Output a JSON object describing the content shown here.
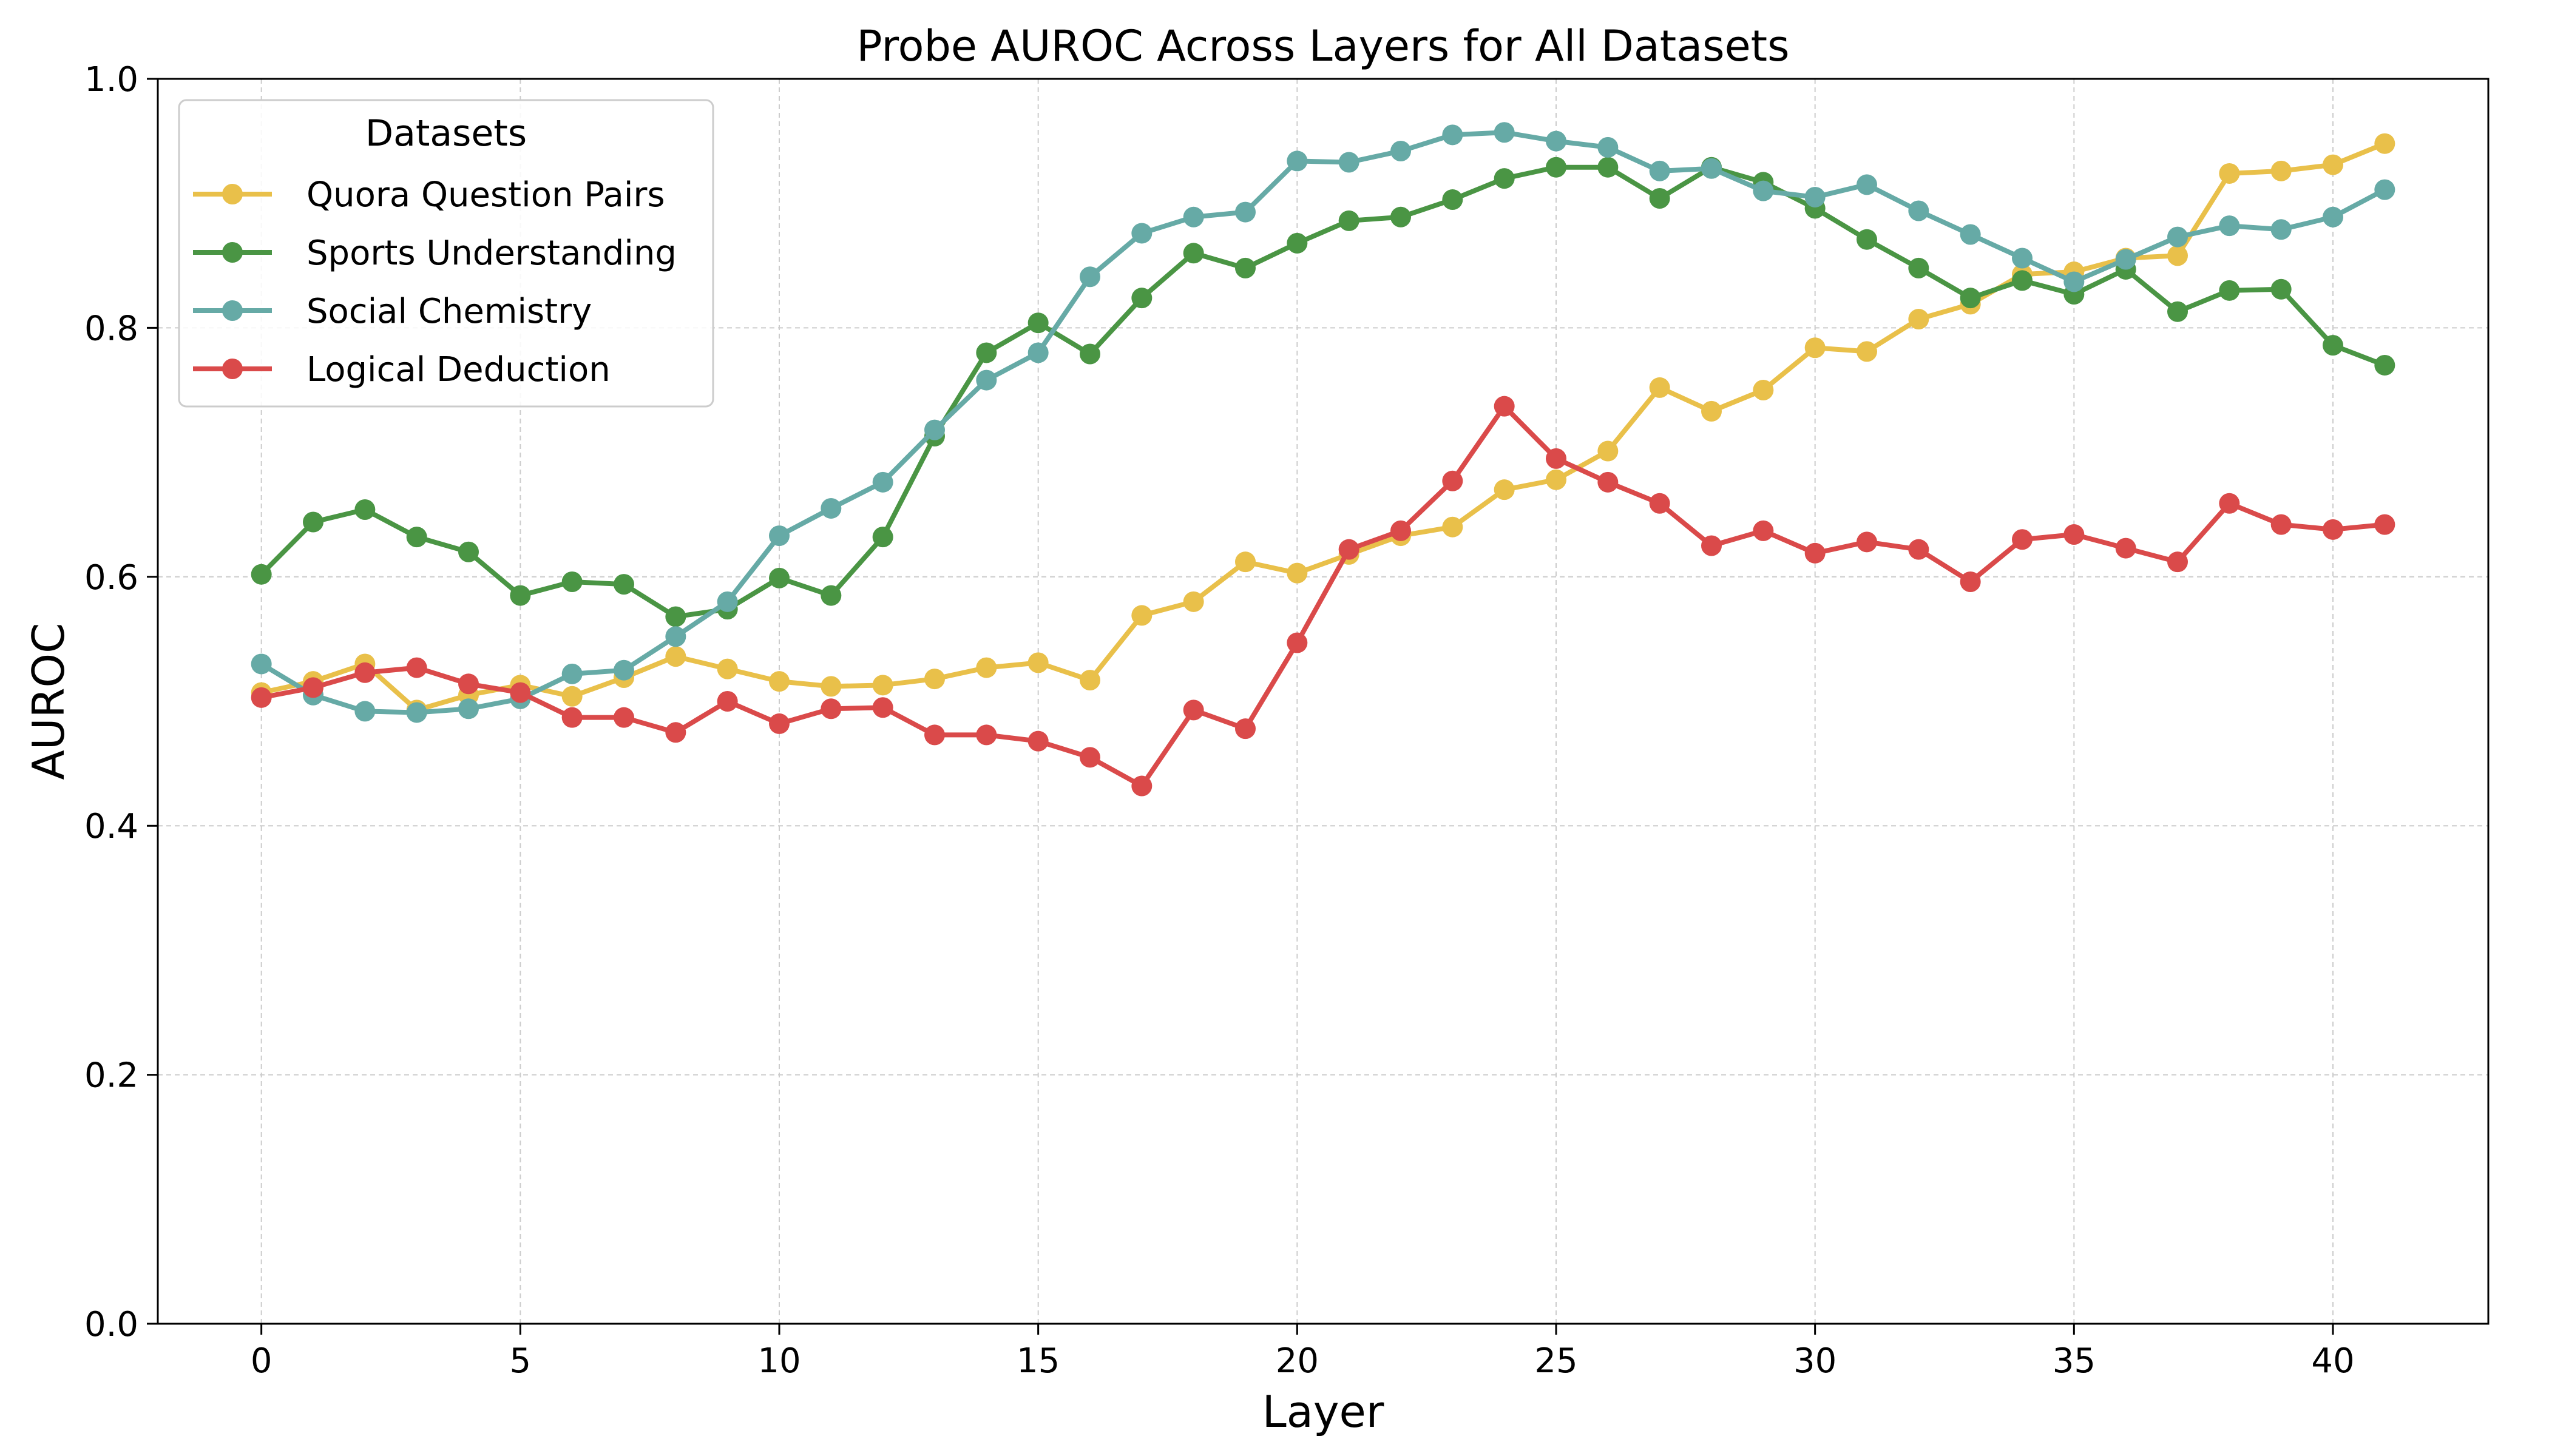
{
  "chart_data": {
    "type": "line",
    "title": "Probe AUROC Across Layers for All Datasets",
    "xlabel": "Layer",
    "ylabel": "AUROC",
    "xlim": [
      -2,
      43
    ],
    "ylim": [
      0.0,
      1.0
    ],
    "xticks": [
      0,
      5,
      10,
      15,
      20,
      25,
      30,
      35,
      40
    ],
    "yticks": [
      "0.0",
      "0.2",
      "0.4",
      "0.6",
      "0.8",
      "1.0"
    ],
    "grid": true,
    "legend": {
      "title": "Datasets",
      "placement": "top-left"
    },
    "x": [
      0,
      1,
      2,
      3,
      4,
      5,
      6,
      7,
      8,
      9,
      10,
      11,
      12,
      13,
      14,
      15,
      16,
      17,
      18,
      19,
      20,
      21,
      22,
      23,
      24,
      25,
      26,
      27,
      28,
      29,
      30,
      31,
      32,
      33,
      34,
      35,
      36,
      37,
      38,
      39,
      40,
      41
    ],
    "series": [
      {
        "name": "Quora Question Pairs",
        "color": "#E9C04A",
        "values": [
          0.507,
          0.516,
          0.53,
          0.493,
          0.505,
          0.513,
          0.504,
          0.519,
          0.536,
          0.526,
          0.516,
          0.512,
          0.513,
          0.518,
          0.527,
          0.531,
          0.517,
          0.569,
          0.58,
          0.612,
          0.603,
          0.618,
          0.633,
          0.64,
          0.67,
          0.678,
          0.701,
          0.752,
          0.733,
          0.75,
          0.784,
          0.781,
          0.807,
          0.819,
          0.843,
          0.845,
          0.856,
          0.858,
          0.924,
          0.926,
          0.931,
          0.948
        ]
      },
      {
        "name": "Sports Understanding",
        "color": "#4A9544",
        "values": [
          0.602,
          0.644,
          0.654,
          0.632,
          0.62,
          0.585,
          0.596,
          0.594,
          0.568,
          0.574,
          0.599,
          0.585,
          0.632,
          0.713,
          0.78,
          0.804,
          0.779,
          0.824,
          0.86,
          0.848,
          0.868,
          0.886,
          0.889,
          0.903,
          0.92,
          0.929,
          0.929,
          0.904,
          0.929,
          0.917,
          0.896,
          0.871,
          0.848,
          0.824,
          0.838,
          0.827,
          0.847,
          0.813,
          0.83,
          0.831,
          0.786,
          0.77
        ]
      },
      {
        "name": "Social Chemistry",
        "color": "#66AAA6",
        "values": [
          0.53,
          0.505,
          0.492,
          0.491,
          0.494,
          0.502,
          0.522,
          0.525,
          0.552,
          0.58,
          0.633,
          0.655,
          0.676,
          0.718,
          0.758,
          0.78,
          0.841,
          0.876,
          0.889,
          0.893,
          0.934,
          0.933,
          0.942,
          0.955,
          0.957,
          0.95,
          0.945,
          0.926,
          0.928,
          0.91,
          0.905,
          0.915,
          0.894,
          0.875,
          0.856,
          0.837,
          0.855,
          0.873,
          0.882,
          0.879,
          0.889,
          0.911
        ]
      },
      {
        "name": "Logical Deduction",
        "color": "#DA4A4A",
        "values": [
          0.503,
          0.511,
          0.523,
          0.527,
          0.514,
          0.507,
          0.487,
          0.487,
          0.475,
          0.5,
          0.482,
          0.494,
          0.495,
          0.473,
          0.473,
          0.468,
          0.455,
          0.432,
          0.493,
          0.478,
          0.547,
          0.622,
          0.637,
          0.677,
          0.737,
          0.695,
          0.676,
          0.659,
          0.625,
          0.637,
          0.619,
          0.628,
          0.622,
          0.596,
          0.63,
          0.634,
          0.623,
          0.612,
          0.659,
          0.642,
          0.638,
          0.642
        ]
      }
    ]
  }
}
